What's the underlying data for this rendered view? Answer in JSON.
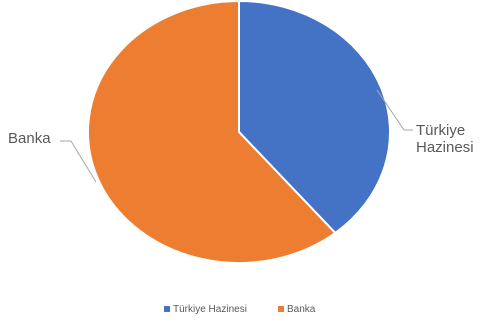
{
  "chart_data": {
    "type": "pie",
    "title": "",
    "slices": [
      {
        "label": "Türkiye Hazinesi",
        "value": 39,
        "color": "#4472C4"
      },
      {
        "label": "Banka",
        "value": 61,
        "color": "#ED7D31"
      }
    ],
    "callouts": {
      "hazine_line1": "Türkiye",
      "hazine_line2": "Hazinesi",
      "banka": "Banka"
    },
    "legend": {
      "position": "bottom",
      "items": [
        "Türkiye Hazinesi",
        "Banka"
      ]
    }
  }
}
